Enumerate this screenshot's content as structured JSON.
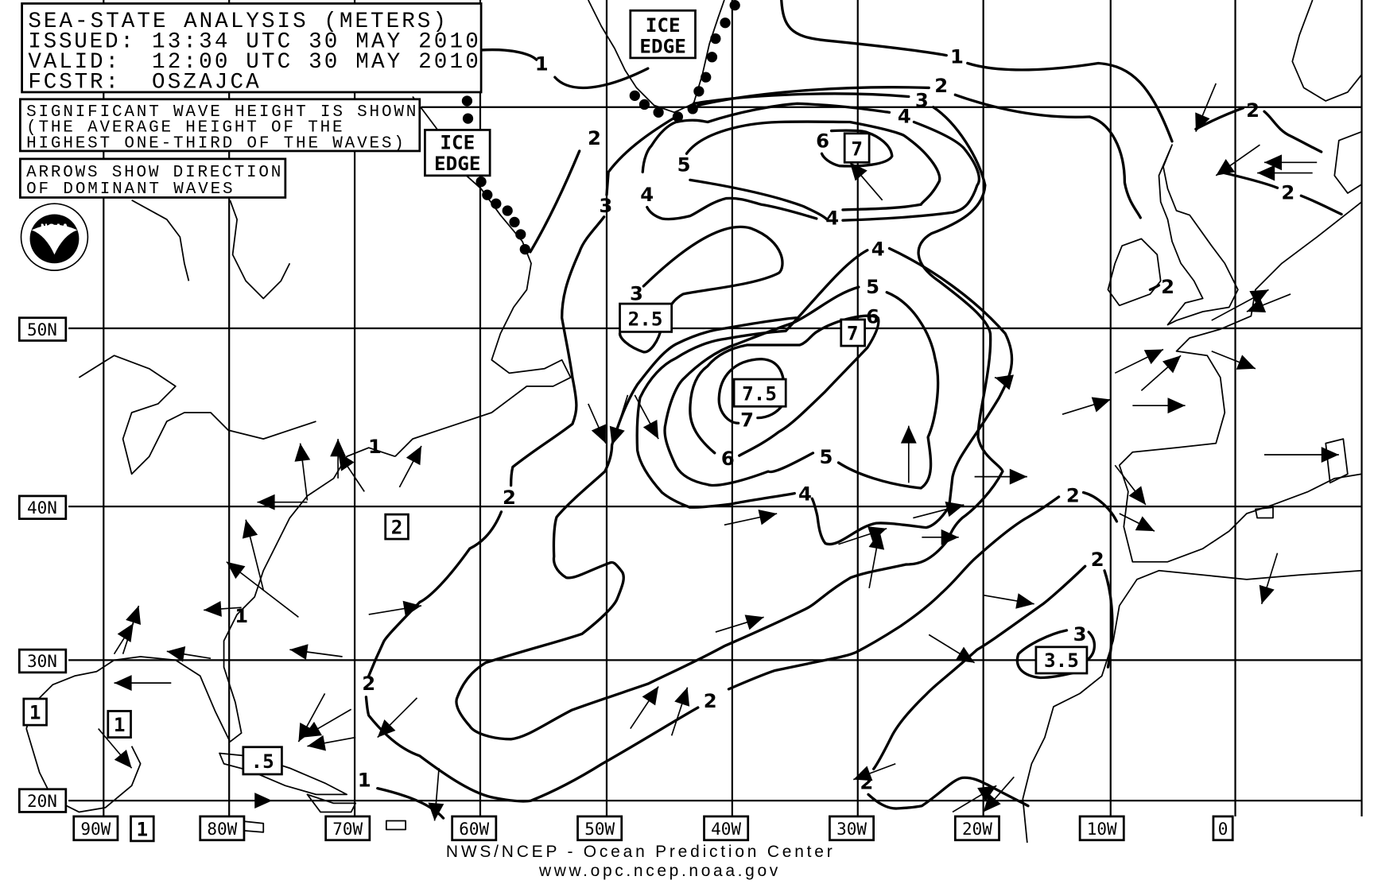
{
  "title_box": {
    "title": "SEA-STATE ANALYSIS (METERS)",
    "issued_label": "ISSUED:",
    "issued": "13:34 UTC 30 MAY 2010",
    "valid_label": "VALID:",
    "valid": "12:00 UTC 30 MAY 2010",
    "forecaster_label": "FCSTR:",
    "forecaster": "OSZAJCA"
  },
  "legend": {
    "wave_height": [
      "SIGNIFICANT WAVE HEIGHT IS SHOWN",
      "(THE AVERAGE HEIGHT OF THE",
      "HIGHEST ONE-THIRD OF THE WAVES)"
    ],
    "arrows": [
      "ARROWS SHOW DIRECTION",
      "OF DOMINANT WAVES"
    ]
  },
  "ice_edge_label": [
    "ICE",
    "EDGE"
  ],
  "logo": "NOAA",
  "latitudes": [
    "50N",
    "40N",
    "30N",
    "20N"
  ],
  "longitudes": [
    "90W",
    "80W",
    "70W",
    "60W",
    "50W",
    "40W",
    "30W",
    "20W",
    "10W",
    "0"
  ],
  "contour_labels": [
    "1",
    "1",
    "2",
    "2",
    "3",
    "4",
    "5",
    "6",
    "4",
    "4",
    "3",
    "4",
    "3",
    "5",
    "6",
    "7",
    "6",
    "5",
    "4",
    "2",
    "2",
    "2",
    "2",
    "2",
    "3",
    "2",
    "1",
    "1",
    "1",
    "2",
    "2",
    "2"
  ],
  "boxed_values": [
    "7",
    "2.5",
    "7.5",
    "7",
    "3.5",
    "2",
    "1",
    "1",
    "1",
    ".5"
  ],
  "footer": {
    "agency": "NWS/NCEP - Ocean Prediction Center",
    "url": "www.opc.ncep.noaa.gov"
  },
  "colors": {
    "ink": "#000000",
    "background": "#ffffff"
  }
}
